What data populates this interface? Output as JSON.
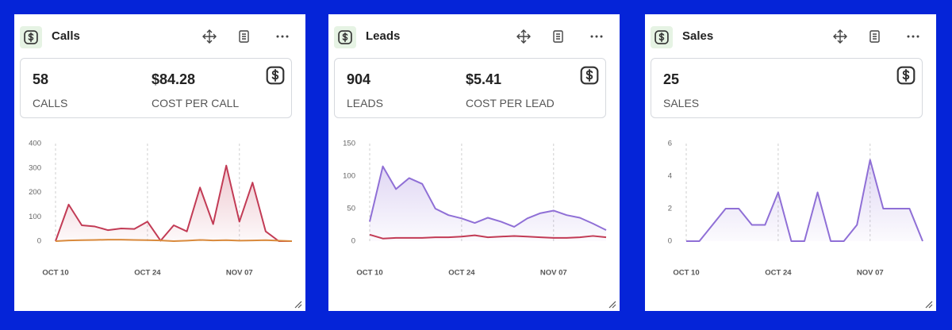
{
  "cards": [
    {
      "title": "Calls",
      "stats": [
        {
          "value": "58",
          "label": "CALLS"
        },
        {
          "value": "$84.28",
          "label": "COST PER CALL"
        }
      ],
      "chart": {
        "type": "line",
        "xlim": [
          0,
          18
        ],
        "ylim": [
          0,
          400
        ],
        "yticks": [
          0,
          100,
          200,
          300,
          400
        ],
        "xticks": [
          {
            "value": 0,
            "label": "OCT 10"
          },
          {
            "value": 7,
            "label": "OCT 24"
          },
          {
            "value": 14,
            "label": "NOV 07"
          }
        ],
        "series": [
          {
            "color": "#c23b55",
            "area": true,
            "values": [
              0,
              150,
              65,
              60,
              45,
              52,
              50,
              80,
              2,
              65,
              40,
              220,
              70,
              310,
              80,
              240,
              40,
              0,
              0
            ]
          },
          {
            "color": "#d98a3c",
            "area": false,
            "values": [
              0,
              3,
              4,
              5,
              6,
              6,
              5,
              4,
              3,
              0,
              2,
              5,
              3,
              4,
              2,
              3,
              4,
              2,
              0
            ]
          }
        ]
      }
    },
    {
      "title": "Leads",
      "stats": [
        {
          "value": "904",
          "label": "LEADS"
        },
        {
          "value": "$5.41",
          "label": "COST PER LEAD"
        }
      ],
      "chart": {
        "type": "line",
        "xlim": [
          0,
          18
        ],
        "ylim": [
          0,
          150
        ],
        "yticks": [
          0,
          50,
          100,
          150
        ],
        "xticks": [
          {
            "value": 0,
            "label": "OCT 10"
          },
          {
            "value": 7,
            "label": "OCT 24"
          },
          {
            "value": 14,
            "label": "NOV 07"
          }
        ],
        "series": [
          {
            "color": "#8f6fd6",
            "area": true,
            "values": [
              30,
              115,
              80,
              97,
              88,
              50,
              40,
              35,
              28,
              36,
              30,
              22,
              35,
              43,
              47,
              40,
              36,
              27,
              17
            ]
          },
          {
            "color": "#c23b55",
            "area": false,
            "values": [
              10,
              4,
              5,
              5,
              5,
              6,
              6,
              7,
              9,
              6,
              7,
              8,
              7,
              6,
              5,
              5,
              6,
              8,
              6
            ]
          }
        ]
      }
    },
    {
      "title": "Sales",
      "stats": [
        {
          "value": "25",
          "label": "SALES"
        }
      ],
      "chart": {
        "type": "line",
        "xlim": [
          0,
          18
        ],
        "ylim": [
          0,
          6
        ],
        "yticks": [
          0,
          2,
          4,
          6
        ],
        "xticks": [
          {
            "value": 0,
            "label": "OCT 10"
          },
          {
            "value": 7,
            "label": "OCT 24"
          },
          {
            "value": 14,
            "label": "NOV 07"
          }
        ],
        "series": [
          {
            "color": "#8f6fd6",
            "area": true,
            "values": [
              0,
              0,
              1,
              2,
              2,
              1,
              1,
              3,
              0,
              0,
              3,
              0,
              0,
              1,
              5,
              2,
              2,
              2,
              0
            ]
          }
        ]
      }
    }
  ]
}
